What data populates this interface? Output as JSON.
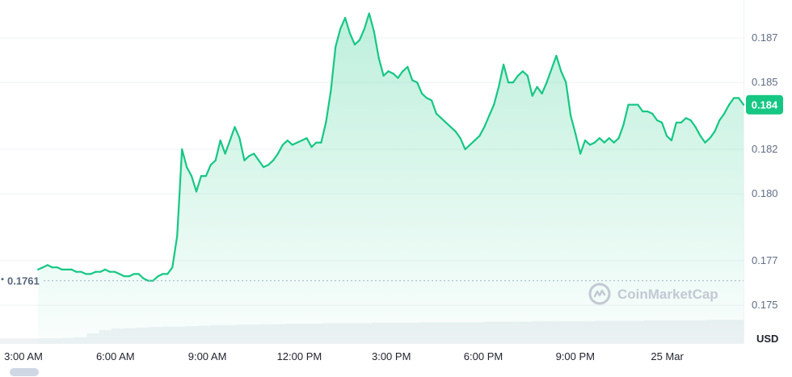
{
  "chart_data": {
    "type": "area",
    "x_labels": [
      "3:00 AM",
      "6:00 AM",
      "9:00 AM",
      "12:00 PM",
      "3:00 PM",
      "6:00 PM",
      "9:00 PM",
      "25 Mar"
    ],
    "y_ticks": [
      0.175,
      0.177,
      0.18,
      0.182,
      0.185,
      0.187
    ],
    "y_tick_labels": [
      "0.175",
      "0.177",
      "0.180",
      "0.182",
      "0.185",
      "0.187"
    ],
    "ylim": [
      0.1733,
      0.1887
    ],
    "start_price": 0.1761,
    "start_label": "0.1761",
    "last_price": 0.184,
    "last_label": "0.184",
    "unit": "USD",
    "grid": true,
    "series": [
      {
        "values": [
          0.1766,
          0.1767,
          0.1768,
          0.1767,
          0.1767,
          0.1766,
          0.1766,
          0.1766,
          0.1765,
          0.1765,
          0.1764,
          0.1764,
          0.1765,
          0.1765,
          0.1766,
          0.1765,
          0.1765,
          0.1764,
          0.1763,
          0.1763,
          0.1764,
          0.1764,
          0.1762,
          0.1761,
          0.1761,
          0.1763,
          0.1764,
          0.1764,
          0.1767,
          0.1781,
          0.182,
          0.1812,
          0.1808,
          0.1801,
          0.1808,
          0.1808,
          0.1813,
          0.1815,
          0.1824,
          0.1818,
          0.1824,
          0.183,
          0.1825,
          0.1815,
          0.1817,
          0.1818,
          0.1815,
          0.1812,
          0.1813,
          0.1815,
          0.1818,
          0.1822,
          0.1824,
          0.1822,
          0.1823,
          0.1824,
          0.1825,
          0.1821,
          0.1823,
          0.1823,
          0.1832,
          0.1846,
          0.1866,
          0.1874,
          0.1879,
          0.1872,
          0.1867,
          0.1869,
          0.1874,
          0.1881,
          0.1873,
          0.1861,
          0.1853,
          0.1855,
          0.1854,
          0.1852,
          0.1855,
          0.1857,
          0.1851,
          0.185,
          0.1845,
          0.1843,
          0.1842,
          0.1836,
          0.1834,
          0.1832,
          0.183,
          0.1828,
          0.1825,
          0.182,
          0.1822,
          0.1824,
          0.1826,
          0.183,
          0.1835,
          0.184,
          0.1848,
          0.1858,
          0.185,
          0.185,
          0.1853,
          0.1855,
          0.1853,
          0.1844,
          0.1848,
          0.1845,
          0.185,
          0.1856,
          0.1862,
          0.1855,
          0.185,
          0.1835,
          0.1827,
          0.1818,
          0.1824,
          0.1822,
          0.1823,
          0.1825,
          0.1823,
          0.1825,
          0.1823,
          0.1825,
          0.1831,
          0.184,
          0.184,
          0.184,
          0.1837,
          0.1837,
          0.1836,
          0.1833,
          0.1832,
          0.1826,
          0.1824,
          0.1832,
          0.1832,
          0.1834,
          0.1833,
          0.183,
          0.1826,
          0.1823,
          0.1825,
          0.1828,
          0.1833,
          0.1836,
          0.184,
          0.1843,
          0.1843,
          0.184
        ]
      }
    ],
    "volume": [
      0.1,
      0.1,
      0.1,
      0.1,
      0.1,
      0.11,
      0.12,
      0.2,
      0.27,
      0.3,
      0.31,
      0.32,
      0.33,
      0.34,
      0.34,
      0.35,
      0.36,
      0.37,
      0.37,
      0.38,
      0.38,
      0.39,
      0.39,
      0.4,
      0.4,
      0.4,
      0.41,
      0.41,
      0.41,
      0.41,
      0.42,
      0.42,
      0.42,
      0.42,
      0.43,
      0.43,
      0.43,
      0.43,
      0.43,
      0.44,
      0.44,
      0.44,
      0.44,
      0.45,
      0.45,
      0.45,
      0.45,
      0.45,
      0.46,
      0.46,
      0.46,
      0.46,
      0.47,
      0.47,
      0.47,
      0.47,
      0.47,
      0.48,
      0.48,
      0.48
    ]
  },
  "watermark": {
    "text": "CoinMarketCap",
    "icon": "coinmarketcap-logo-icon"
  },
  "colors": {
    "up": "#16c784",
    "down": "#ea3943",
    "grid": "#eff2f5",
    "start_line": "#a6b0c3",
    "volume": "#eff2f5"
  }
}
